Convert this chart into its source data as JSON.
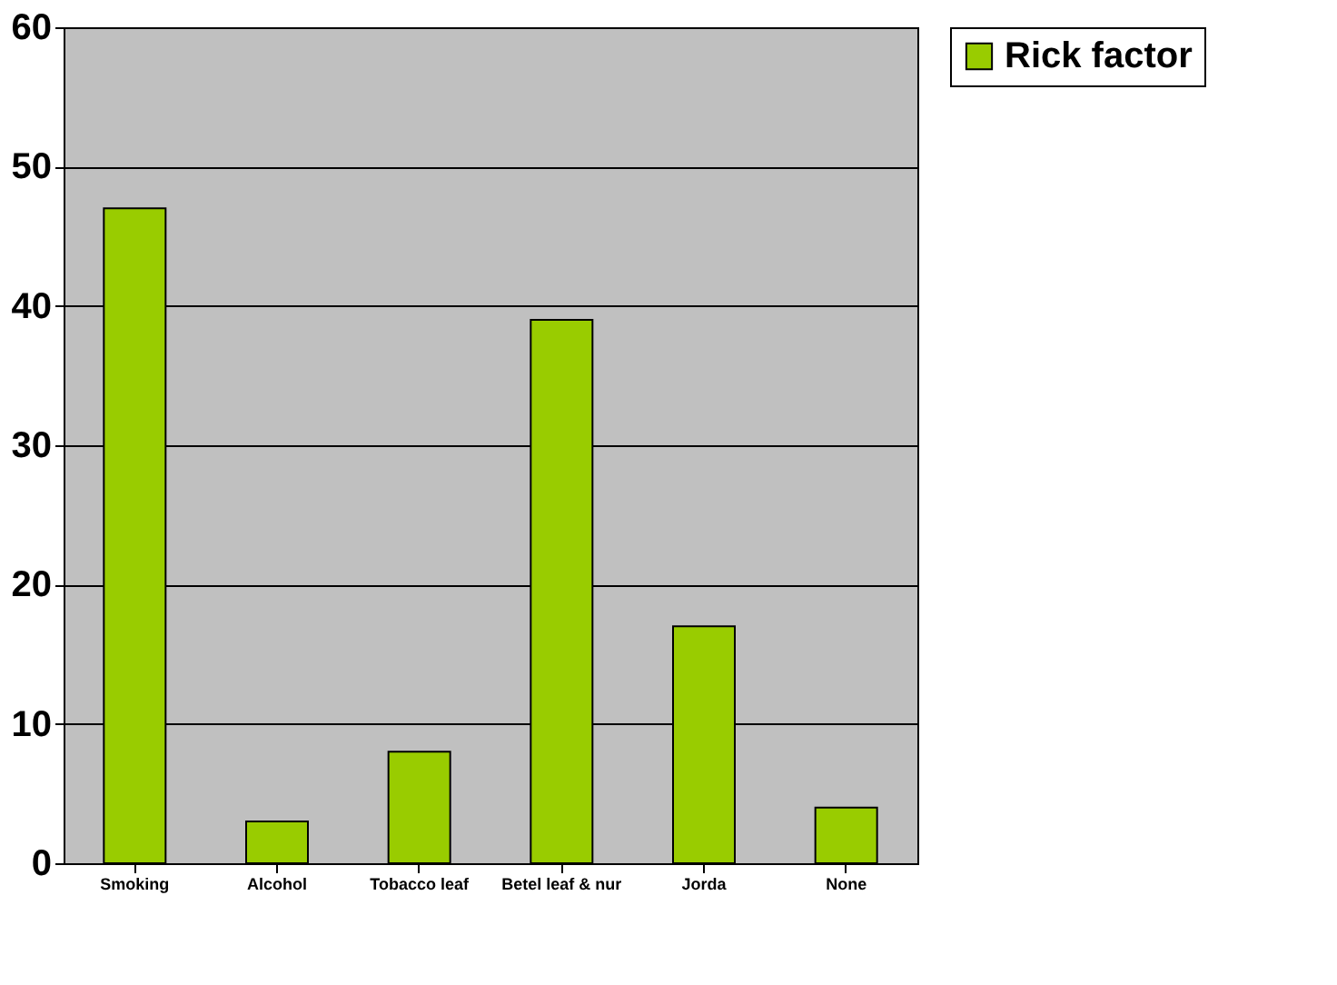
{
  "chart_data": {
    "type": "bar",
    "categories": [
      "Smoking",
      "Alcohol",
      "Tobacco leaf",
      "Betel leaf & nur",
      "Jorda",
      "None"
    ],
    "series": [
      {
        "name": "Rick factor",
        "color": "#99cc00",
        "values": [
          47,
          3,
          8,
          39,
          17,
          4
        ]
      }
    ],
    "ylim": [
      0,
      60
    ],
    "yticks": [
      0,
      10,
      20,
      30,
      40,
      50,
      60
    ],
    "grid": "y",
    "legend": "right"
  }
}
